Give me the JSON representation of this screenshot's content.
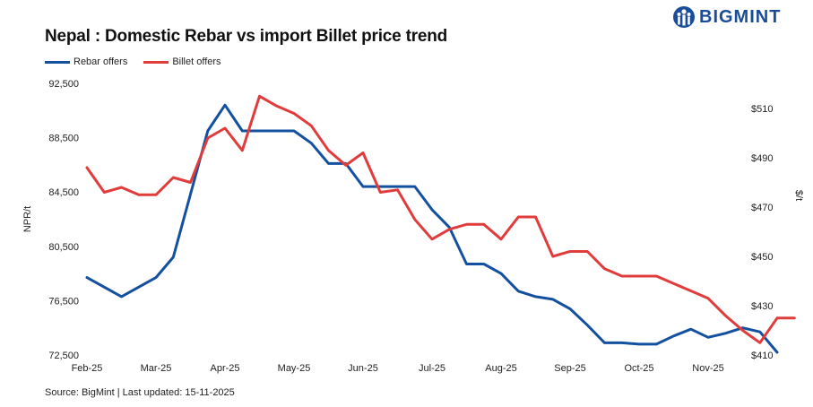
{
  "title": "Nepal : Domestic Rebar vs import Billet price trend",
  "brand": {
    "name": "BIGMINT",
    "color": "#1a4d99",
    "icon": "bigmint-logo-icon"
  },
  "source": "Source: BigMint | Last updated: 15-11-2025",
  "chart_data": {
    "type": "line",
    "x_labels": [
      "Feb-25",
      "Mar-25",
      "Apr-25",
      "May-25",
      "Jun-25",
      "Jul-25",
      "Aug-25",
      "Sep-25",
      "Oct-25",
      "Nov-25"
    ],
    "ylabel": "NPR/t",
    "y2label": "$/t",
    "ylim": [
      72500,
      92500
    ],
    "y_ticks": [
      "92,500",
      "88,500",
      "84,500",
      "80,500",
      "76,500",
      "72,500"
    ],
    "y2lim": [
      410,
      520
    ],
    "y2_ticks": [
      "$510",
      "$490",
      "$470",
      "$450",
      "$430",
      "$410"
    ],
    "legend_position": "top-left",
    "grid": false,
    "series": [
      {
        "name": "Rebar offers",
        "axis": "left",
        "color": "#1450a0",
        "points": [
          [
            0,
            78200
          ],
          [
            0.5,
            76800
          ],
          [
            1,
            78200
          ],
          [
            1.25,
            79700
          ],
          [
            1.75,
            89000
          ],
          [
            2.0,
            90900
          ],
          [
            2.25,
            89000
          ],
          [
            2.5,
            89000
          ],
          [
            2.75,
            89000
          ],
          [
            3.0,
            89000
          ],
          [
            3.25,
            88100
          ],
          [
            3.5,
            86600
          ],
          [
            3.75,
            86600
          ],
          [
            4.0,
            84900
          ],
          [
            4.25,
            84900
          ],
          [
            4.5,
            84900
          ],
          [
            4.75,
            84900
          ],
          [
            5.0,
            83200
          ],
          [
            5.25,
            81900
          ],
          [
            5.5,
            79200
          ],
          [
            5.75,
            79200
          ],
          [
            6.0,
            78500
          ],
          [
            6.25,
            77200
          ],
          [
            6.5,
            76800
          ],
          [
            6.75,
            76600
          ],
          [
            7.0,
            75900
          ],
          [
            7.25,
            74700
          ],
          [
            7.5,
            73400
          ],
          [
            7.75,
            73400
          ],
          [
            8.0,
            73300
          ],
          [
            8.25,
            73300
          ],
          [
            8.5,
            73900
          ],
          [
            8.75,
            74400
          ],
          [
            9.0,
            73800
          ],
          [
            9.25,
            74100
          ],
          [
            9.5,
            74500
          ],
          [
            9.75,
            74200
          ],
          [
            10.0,
            72700
          ]
        ]
      },
      {
        "name": "Billet offers",
        "axis": "right",
        "color": "#e03c3c",
        "points": [
          [
            0,
            486
          ],
          [
            0.25,
            476
          ],
          [
            0.5,
            478
          ],
          [
            0.75,
            475
          ],
          [
            1.0,
            475
          ],
          [
            1.25,
            482
          ],
          [
            1.5,
            480
          ],
          [
            1.75,
            498
          ],
          [
            2.0,
            502
          ],
          [
            2.25,
            493
          ],
          [
            2.5,
            515
          ],
          [
            2.75,
            511
          ],
          [
            3.0,
            508
          ],
          [
            3.25,
            503
          ],
          [
            3.5,
            493
          ],
          [
            3.75,
            487
          ],
          [
            4.0,
            492
          ],
          [
            4.25,
            476
          ],
          [
            4.5,
            477
          ],
          [
            4.75,
            465
          ],
          [
            5.0,
            457
          ],
          [
            5.25,
            461
          ],
          [
            5.5,
            463
          ],
          [
            5.75,
            463
          ],
          [
            6.0,
            457
          ],
          [
            6.25,
            466
          ],
          [
            6.5,
            466
          ],
          [
            6.75,
            450
          ],
          [
            7.0,
            452
          ],
          [
            7.25,
            452
          ],
          [
            7.5,
            445
          ],
          [
            7.75,
            442
          ],
          [
            8.0,
            442
          ],
          [
            8.25,
            442
          ],
          [
            8.5,
            439
          ],
          [
            8.75,
            436
          ],
          [
            9.0,
            433
          ],
          [
            9.25,
            426
          ],
          [
            9.5,
            420
          ],
          [
            9.75,
            415
          ],
          [
            10.0,
            425
          ],
          [
            10.25,
            425
          ]
        ]
      }
    ]
  }
}
